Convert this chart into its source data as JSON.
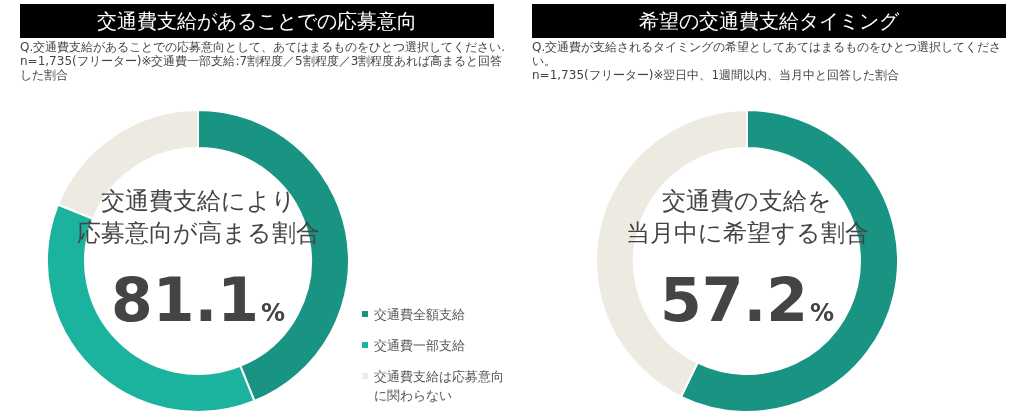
{
  "chart_data": [
    {
      "type": "donut",
      "title": "交通費支給があることでの応募意向",
      "subtitle": "Q.交通費支給があることでの応募意向として、あてはまるものをひとつ選択してください.\nn=1,735(フリーター)※交通費一部支給:7割程度／5割程度／3割程度あれば高まると回答した割合",
      "categories": [
        "交通費全額支給",
        "交通費一部支給",
        "交通費支給は応募意向に関わらない"
      ],
      "values": [
        43.9,
        37.2,
        18.9
      ],
      "colors": [
        "#1a9482",
        "#1cb39e",
        "#edebe1"
      ],
      "legend": "bottom right",
      "annotations": [
        "交通費支給により",
        "応募意向が高まる割合",
        "81.1%"
      ]
    },
    {
      "type": "donut",
      "title": "希望の交通費支給タイミング",
      "subtitle": "Q.交通費が支給されるタイミングの希望としてあてはまるものをひとつ選択してください。\nn=1,735(フリーター)※翌日中、1週間以内、当月中と回答した割合",
      "categories": [
        null,
        null
      ],
      "values": [
        57.2,
        42.8
      ],
      "colors": [
        "#1a9482",
        "#edebe1"
      ],
      "legend": false,
      "annotations": [
        "交通費の支給を",
        "当月中に希望する割合",
        "57.2%"
      ]
    }
  ]
}
